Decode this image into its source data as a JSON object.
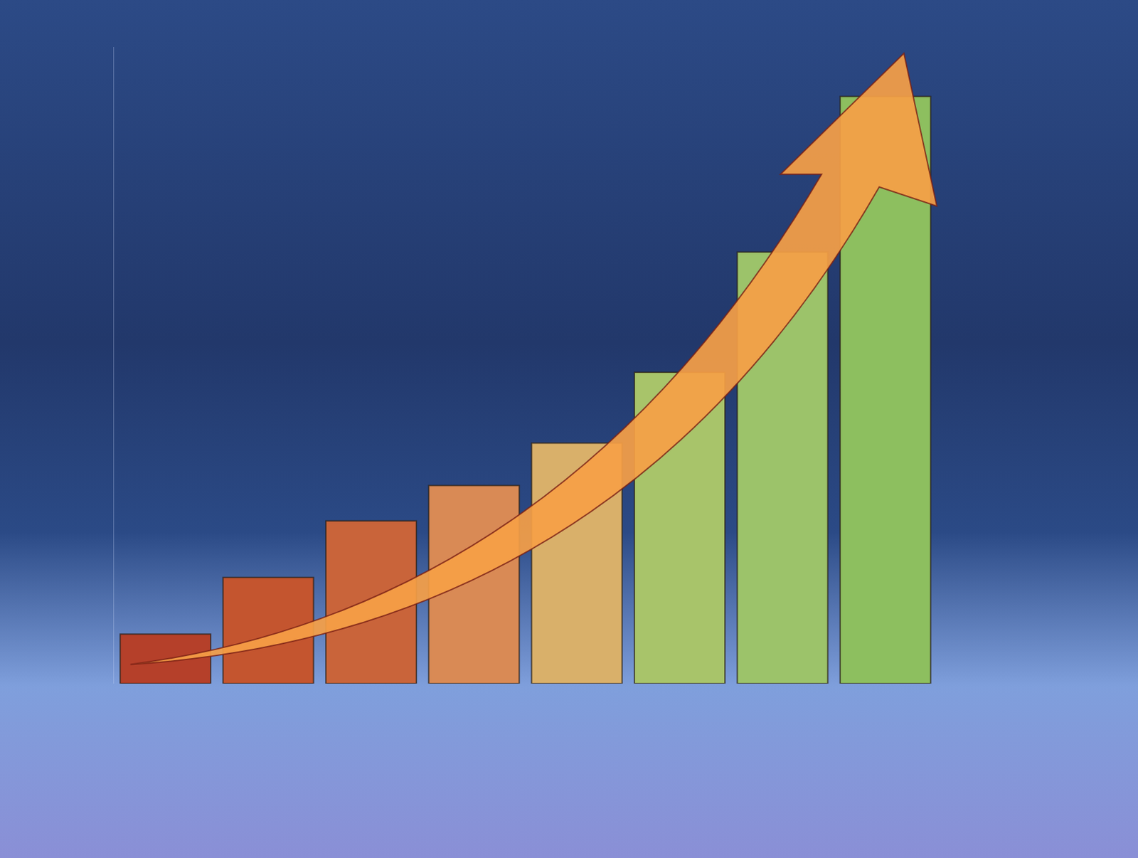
{
  "chart_data": {
    "type": "bar",
    "categories": [
      null,
      null,
      null,
      null,
      null,
      null,
      null,
      null
    ],
    "values": [
      7,
      15,
      23,
      28,
      34,
      44,
      61,
      83
    ],
    "colors": [
      "#b5402a",
      "#c4552f",
      "#c9643a",
      "#d98a55",
      "#d9b06a",
      "#a8c46a",
      "#9cc36a",
      "#8dbf5f"
    ],
    "ylim": [
      0,
      90
    ],
    "grid": false,
    "tick_labels": false
  }
}
